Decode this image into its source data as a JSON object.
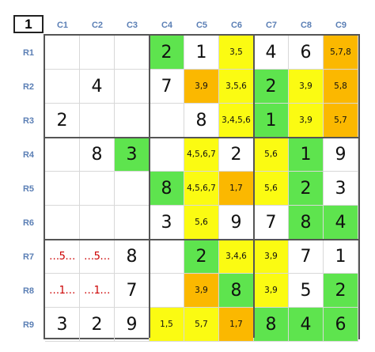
{
  "puzzle": {
    "number": "1",
    "columns": [
      "C1",
      "C2",
      "C3",
      "C4",
      "C5",
      "C6",
      "C7",
      "C8",
      "C9"
    ],
    "rows": [
      "R1",
      "R2",
      "R3",
      "R4",
      "R5",
      "R6",
      "R7",
      "R8",
      "R9"
    ],
    "colors": {
      "green": "#5ee44e",
      "yellow": "#fbfb12",
      "orange": "#fbb800"
    },
    "cells": [
      [
        {
          "text": "",
          "kind": "given",
          "color": ""
        },
        {
          "text": "",
          "kind": "given",
          "color": ""
        },
        {
          "text": "",
          "kind": "given",
          "color": ""
        },
        {
          "text": "2",
          "kind": "solved",
          "color": "green"
        },
        {
          "text": "1",
          "kind": "given",
          "color": ""
        },
        {
          "text": "3,5",
          "kind": "cands",
          "color": "yellow"
        },
        {
          "text": "4",
          "kind": "given",
          "color": ""
        },
        {
          "text": "6",
          "kind": "given",
          "color": ""
        },
        {
          "text": "5,7,8",
          "kind": "cands",
          "color": "orange"
        }
      ],
      [
        {
          "text": "",
          "kind": "given",
          "color": ""
        },
        {
          "text": "4",
          "kind": "given",
          "color": ""
        },
        {
          "text": "",
          "kind": "given",
          "color": ""
        },
        {
          "text": "7",
          "kind": "given",
          "color": ""
        },
        {
          "text": "3,9",
          "kind": "cands",
          "color": "orange"
        },
        {
          "text": "3,5,6",
          "kind": "cands",
          "color": "yellow"
        },
        {
          "text": "2",
          "kind": "solved",
          "color": "green"
        },
        {
          "text": "3,9",
          "kind": "cands",
          "color": "yellow"
        },
        {
          "text": "5,8",
          "kind": "cands",
          "color": "orange"
        }
      ],
      [
        {
          "text": "2",
          "kind": "given",
          "color": ""
        },
        {
          "text": "",
          "kind": "given",
          "color": ""
        },
        {
          "text": "",
          "kind": "given",
          "color": ""
        },
        {
          "text": "",
          "kind": "given",
          "color": ""
        },
        {
          "text": "8",
          "kind": "given",
          "color": ""
        },
        {
          "text": "3,4,5,6",
          "kind": "cands",
          "color": "yellow"
        },
        {
          "text": "1",
          "kind": "solved",
          "color": "green"
        },
        {
          "text": "3,9",
          "kind": "cands",
          "color": "yellow"
        },
        {
          "text": "5,7",
          "kind": "cands",
          "color": "orange"
        }
      ],
      [
        {
          "text": "",
          "kind": "given",
          "color": ""
        },
        {
          "text": "8",
          "kind": "given",
          "color": ""
        },
        {
          "text": "3",
          "kind": "solved",
          "color": "green"
        },
        {
          "text": "",
          "kind": "given",
          "color": ""
        },
        {
          "text": "4,5,6,7",
          "kind": "cands",
          "color": "yellow"
        },
        {
          "text": "2",
          "kind": "given",
          "color": ""
        },
        {
          "text": "5,6",
          "kind": "cands",
          "color": "yellow"
        },
        {
          "text": "1",
          "kind": "solved",
          "color": "green"
        },
        {
          "text": "9",
          "kind": "given",
          "color": ""
        }
      ],
      [
        {
          "text": "",
          "kind": "given",
          "color": ""
        },
        {
          "text": "",
          "kind": "given",
          "color": ""
        },
        {
          "text": "",
          "kind": "given",
          "color": ""
        },
        {
          "text": "8",
          "kind": "solved",
          "color": "green"
        },
        {
          "text": "4,5,6,7",
          "kind": "cands",
          "color": "yellow"
        },
        {
          "text": "1,7",
          "kind": "cands",
          "color": "orange"
        },
        {
          "text": "5,6",
          "kind": "cands",
          "color": "yellow"
        },
        {
          "text": "2",
          "kind": "solved",
          "color": "green"
        },
        {
          "text": "3",
          "kind": "given",
          "color": ""
        }
      ],
      [
        {
          "text": "",
          "kind": "given",
          "color": ""
        },
        {
          "text": "",
          "kind": "given",
          "color": ""
        },
        {
          "text": "",
          "kind": "given",
          "color": ""
        },
        {
          "text": "3",
          "kind": "given",
          "color": ""
        },
        {
          "text": "5,6",
          "kind": "cands",
          "color": "yellow"
        },
        {
          "text": "9",
          "kind": "given",
          "color": ""
        },
        {
          "text": "7",
          "kind": "given",
          "color": ""
        },
        {
          "text": "8",
          "kind": "solved",
          "color": "green"
        },
        {
          "text": "4",
          "kind": "solved",
          "color": "green"
        }
      ],
      [
        {
          "text": "…5…",
          "kind": "pencil",
          "color": ""
        },
        {
          "text": "…5…",
          "kind": "pencil",
          "color": ""
        },
        {
          "text": "8",
          "kind": "given",
          "color": ""
        },
        {
          "text": "",
          "kind": "given",
          "color": ""
        },
        {
          "text": "2",
          "kind": "solved",
          "color": "green"
        },
        {
          "text": "3,4,6",
          "kind": "cands",
          "color": "yellow"
        },
        {
          "text": "3,9",
          "kind": "cands",
          "color": "yellow"
        },
        {
          "text": "7",
          "kind": "given",
          "color": ""
        },
        {
          "text": "1",
          "kind": "given",
          "color": ""
        }
      ],
      [
        {
          "text": "…1…",
          "kind": "pencil",
          "color": ""
        },
        {
          "text": "…1…",
          "kind": "pencil",
          "color": ""
        },
        {
          "text": "7",
          "kind": "given",
          "color": ""
        },
        {
          "text": "",
          "kind": "given",
          "color": ""
        },
        {
          "text": "3,9",
          "kind": "cands",
          "color": "orange"
        },
        {
          "text": "8",
          "kind": "solved",
          "color": "green"
        },
        {
          "text": "3,9",
          "kind": "cands",
          "color": "yellow"
        },
        {
          "text": "5",
          "kind": "given",
          "color": ""
        },
        {
          "text": "2",
          "kind": "solved",
          "color": "green"
        }
      ],
      [
        {
          "text": "3",
          "kind": "given",
          "color": ""
        },
        {
          "text": "2",
          "kind": "given",
          "color": ""
        },
        {
          "text": "9",
          "kind": "given",
          "color": ""
        },
        {
          "text": "1,5",
          "kind": "cands",
          "color": "yellow"
        },
        {
          "text": "5,7",
          "kind": "cands",
          "color": "yellow"
        },
        {
          "text": "1,7",
          "kind": "cands",
          "color": "orange"
        },
        {
          "text": "8",
          "kind": "solved",
          "color": "green"
        },
        {
          "text": "4",
          "kind": "solved",
          "color": "green"
        },
        {
          "text": "6",
          "kind": "solved",
          "color": "green"
        }
      ]
    ]
  }
}
